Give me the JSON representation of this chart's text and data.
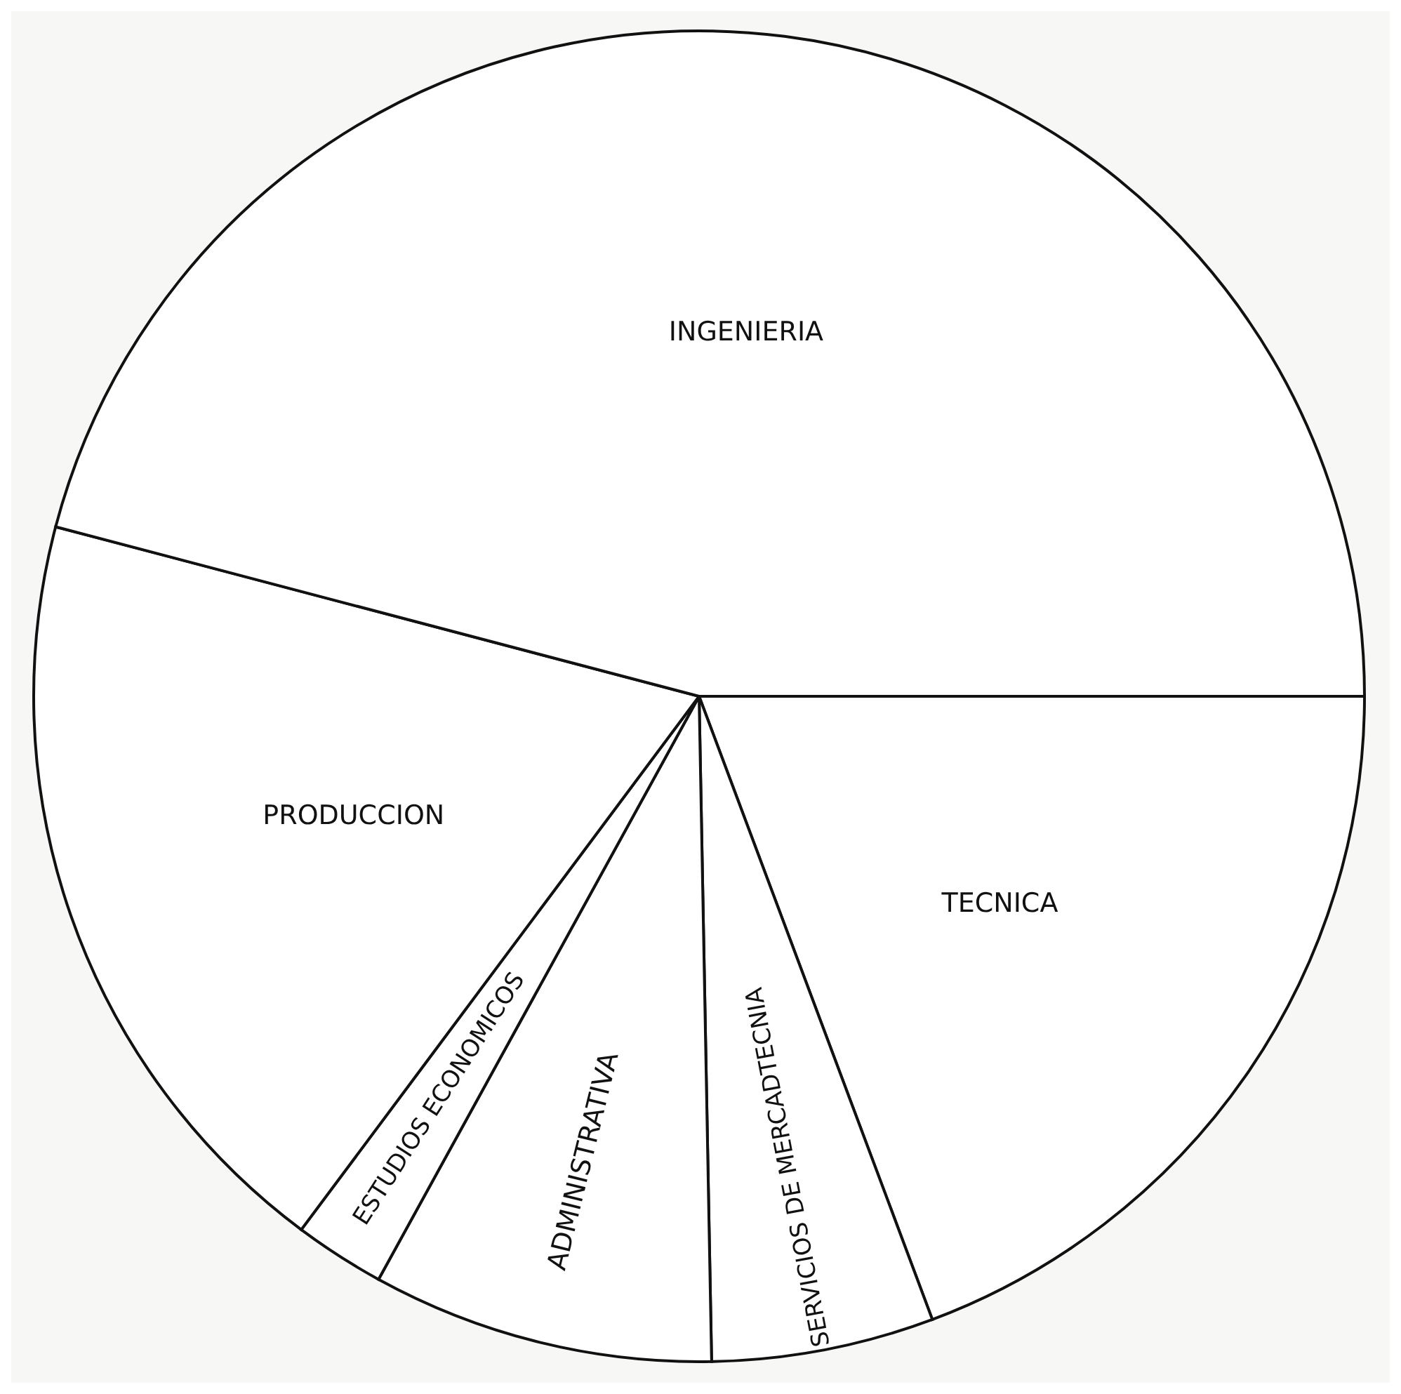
{
  "chart_data": {
    "type": "pie",
    "categories": [
      "TECNICA",
      "SERVICIOS DE MERCADTECNIA",
      "ADMINISTRATIVA",
      "ESTUDIOS ECONOMICOS",
      "PRODUCCION",
      "INGENIERIA"
    ],
    "values": [
      19.3,
      5.4,
      8.3,
      2.2,
      18.9,
      45.9
    ],
    "colors": [
      "#ffffff",
      "#ffffff",
      "#ffffff",
      "#ffffff",
      "#ffffff",
      "#ffffff"
    ]
  }
}
